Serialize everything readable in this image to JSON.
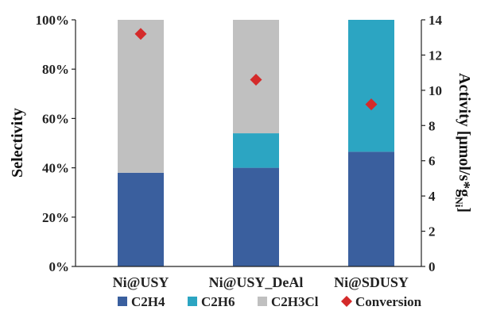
{
  "chart_data": {
    "type": "bar",
    "stacked": true,
    "categories": [
      "Ni@USY",
      "Ni@USY_DeAl",
      "Ni@SDUSY"
    ],
    "series": [
      {
        "name": "C2H4",
        "values": [
          38,
          40,
          46.5
        ],
        "color": "#3a5f9e"
      },
      {
        "name": "C2H6",
        "values": [
          0,
          14,
          53.5
        ],
        "color": "#2ca5c2"
      },
      {
        "name": "C2H3Cl",
        "values": [
          62,
          46,
          0
        ],
        "color": "#c0c0c0"
      }
    ],
    "secondary_series": {
      "name": "Conversion",
      "marker": "diamond",
      "color": "#d42a2a",
      "values": [
        13.2,
        10.6,
        9.2
      ]
    },
    "ylabel": "Selectivity",
    "ylim": [
      0,
      100
    ],
    "y_ticks": [
      "0%",
      "20%",
      "40%",
      "60%",
      "80%",
      "100%"
    ],
    "y2label": "Activity [μmol/s*g",
    "y2label_subscript": "Ni",
    "y2label_end": "]",
    "y2lim": [
      0,
      14
    ],
    "y2_ticks": [
      "0",
      "2",
      "4",
      "6",
      "8",
      "10",
      "12",
      "14"
    ],
    "legend": {
      "position": "bottom",
      "entries": [
        "C2H4",
        "C2H6",
        "C2H3Cl",
        "Conversion"
      ]
    },
    "grid": false
  }
}
